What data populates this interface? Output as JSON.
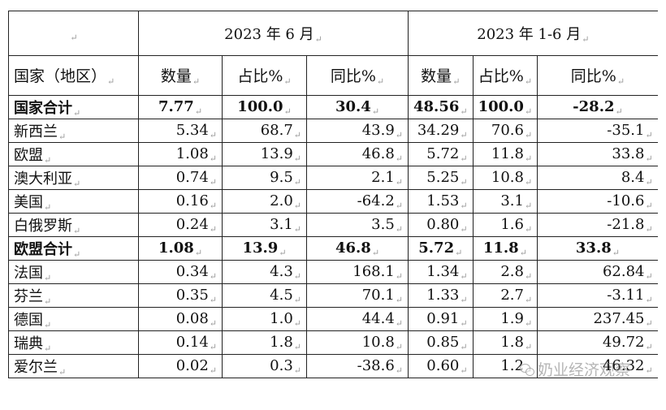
{
  "header": {
    "col0": "",
    "period1": "2023 年 6 月",
    "period2": "2023 年 1-6 月"
  },
  "subheader": {
    "country": "国家（地区）",
    "qty1": "数量",
    "share1": "占比%",
    "yoy1": "同比%",
    "qty2": "数量",
    "share2": "占比%",
    "yoy2": "同比%"
  },
  "rows": [
    {
      "name": "国家合计",
      "qty1": "7.77",
      "share1": "100.0",
      "yoy1": "30.4",
      "qty2": "48.56",
      "share2": "100.0",
      "yoy2": "-28.2"
    },
    {
      "name": "新西兰",
      "qty1": "5.34",
      "share1": "68.7",
      "yoy1": "43.9",
      "qty2": "34.29",
      "share2": "70.6",
      "yoy2": "-35.1"
    },
    {
      "name": "欧盟",
      "qty1": "1.08",
      "share1": "13.9",
      "yoy1": "46.8",
      "qty2": "5.72",
      "share2": "11.8",
      "yoy2": "33.8"
    },
    {
      "name": "澳大利亚",
      "qty1": "0.74",
      "share1": "9.5",
      "yoy1": "2.1",
      "qty2": "5.25",
      "share2": "10.8",
      "yoy2": "8.4"
    },
    {
      "name": "美国",
      "qty1": "0.16",
      "share1": "2.0",
      "yoy1": "-64.2",
      "qty2": "1.53",
      "share2": "3.1",
      "yoy2": "-10.6"
    },
    {
      "name": "白俄罗斯",
      "qty1": "0.24",
      "share1": "3.1",
      "yoy1": "3.5",
      "qty2": "0.80",
      "share2": "1.6",
      "yoy2": "-21.8"
    },
    {
      "name": "欧盟合计",
      "qty1": "1.08",
      "share1": "13.9",
      "yoy1": "46.8",
      "qty2": "5.72",
      "share2": "11.8",
      "yoy2": "33.8"
    },
    {
      "name": "法国",
      "qty1": "0.34",
      "share1": "4.3",
      "yoy1": "168.1",
      "qty2": "1.34",
      "share2": "2.8",
      "yoy2": "62.84"
    },
    {
      "name": "芬兰",
      "qty1": "0.35",
      "share1": "4.5",
      "yoy1": "70.1",
      "qty2": "1.33",
      "share2": "2.7",
      "yoy2": "-3.11"
    },
    {
      "name": "德国",
      "qty1": "0.08",
      "share1": "1.0",
      "yoy1": "44.4",
      "qty2": "0.91",
      "share2": "1.9",
      "yoy2": "237.45"
    },
    {
      "name": "瑞典",
      "qty1": "0.14",
      "share1": "1.8",
      "yoy1": "10.8",
      "qty2": "0.85",
      "share2": "1.8",
      "yoy2": "49.72"
    },
    {
      "name": "爱尔兰",
      "qty1": "0.02",
      "share1": "0.3",
      "yoy1": "-38.6",
      "qty2": "0.60",
      "share2": "1.2",
      "yoy2": "46.32"
    }
  ],
  "watermark": "奶业经济观察"
}
